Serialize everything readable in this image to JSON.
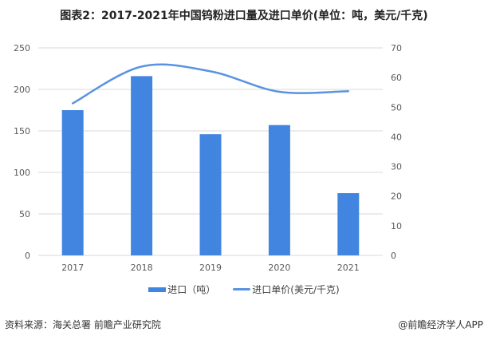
{
  "title": "图表2：2017-2021年中国钨粉进口量及进口单价(单位：吨，美元/千克)",
  "chart_data": {
    "type": "bar+line",
    "categories": [
      "2017",
      "2018",
      "2019",
      "2020",
      "2021"
    ],
    "series": [
      {
        "name": "进口（吨）",
        "type": "bar",
        "axis": "left",
        "values": [
          175,
          216,
          146,
          157,
          75
        ],
        "color": "#4285e0"
      },
      {
        "name": "进口单价(美元/千克)",
        "type": "line",
        "axis": "right",
        "smooth": true,
        "values": [
          51.3,
          63.7,
          62.1,
          55.2,
          55.4
        ],
        "color": "#5a93e0"
      }
    ],
    "y_left": {
      "range": [
        0,
        250
      ],
      "ticks": [
        "0",
        "50",
        "100",
        "150",
        "200",
        "250"
      ]
    },
    "y_right": {
      "range": [
        0,
        70
      ],
      "ticks": [
        "0",
        "10",
        "20",
        "30",
        "40",
        "50",
        "60",
        "70"
      ]
    },
    "grid": true,
    "legend": "bottom"
  },
  "footer": {
    "source": "资料来源：海关总署 前瞻产业研究院",
    "credit": "@前瞻经济学人APP"
  }
}
